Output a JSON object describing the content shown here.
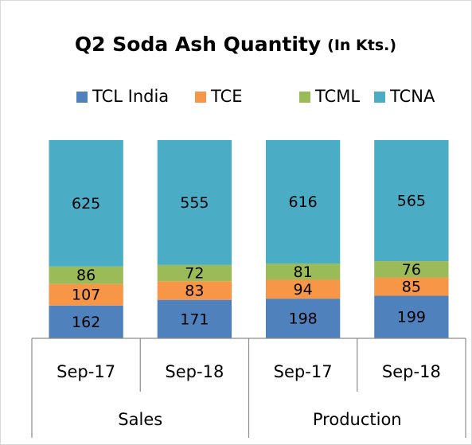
{
  "chart_data": {
    "type": "bar",
    "stacking": "percent",
    "title": "Q2 Soda Ash Quantity",
    "title_unit": "(In Kts.)",
    "category_groups": [
      {
        "name": "Sales",
        "categories": [
          "Sep-17",
          "Sep-18"
        ]
      },
      {
        "name": "Production",
        "categories": [
          "Sep-17",
          "Sep-18"
        ]
      }
    ],
    "series": [
      {
        "name": "TCL India",
        "color": "#4f81bd",
        "values": [
          162,
          171,
          198,
          199
        ]
      },
      {
        "name": "TCE",
        "color": "#f79646",
        "values": [
          107,
          83,
          94,
          85
        ]
      },
      {
        "name": "TCML",
        "color": "#9bbb59",
        "values": [
          86,
          72,
          81,
          76
        ]
      },
      {
        "name": "TCNA",
        "color": "#4bacc6",
        "values": [
          625,
          555,
          616,
          565
        ]
      }
    ],
    "legend": "top",
    "data_labels": true
  }
}
